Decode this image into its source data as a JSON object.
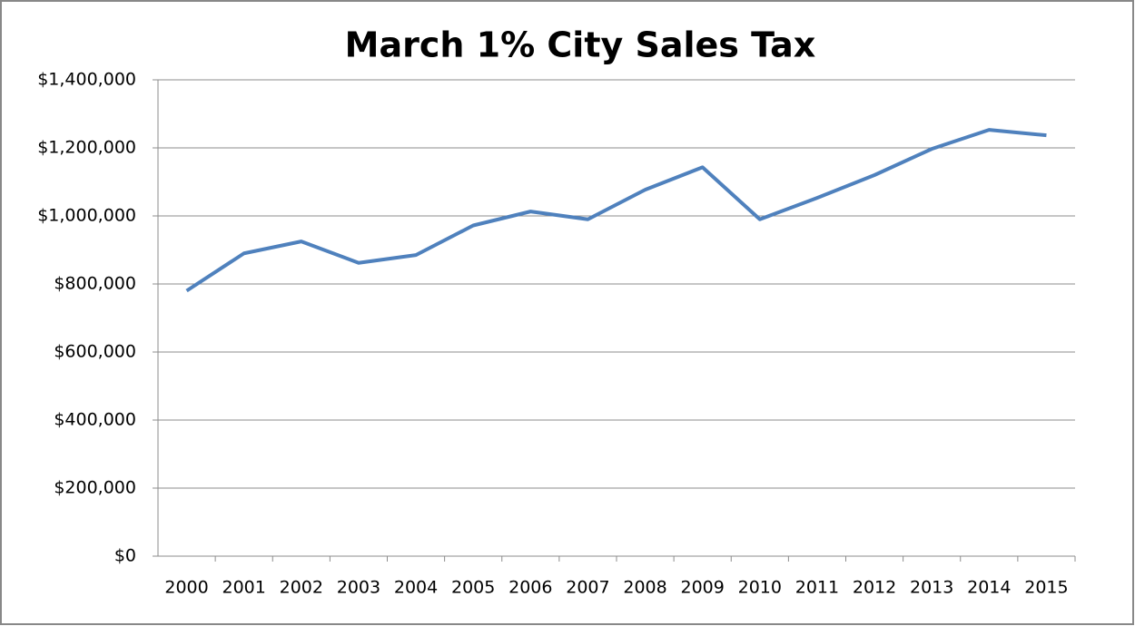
{
  "chart_data": {
    "type": "line",
    "title": "March 1% City Sales Tax",
    "categories": [
      "2000",
      "2001",
      "2002",
      "2003",
      "2004",
      "2005",
      "2006",
      "2007",
      "2008",
      "2009",
      "2010",
      "2011",
      "2012",
      "2013",
      "2014",
      "2015"
    ],
    "series": [
      {
        "color": "#4f81bd",
        "values": [
          780000,
          890000,
          925000,
          862000,
          885000,
          972000,
          1013000,
          990000,
          1077000,
          1143000,
          990000,
          1053000,
          1120000,
          1197000,
          1253000,
          1237000
        ]
      }
    ],
    "ylim": [
      0,
      1400000
    ],
    "yticks": [
      {
        "value": 0,
        "label": "$0"
      },
      {
        "value": 200000,
        "label": "$200,000"
      },
      {
        "value": 400000,
        "label": "$400,000"
      },
      {
        "value": 600000,
        "label": "$600,000"
      },
      {
        "value": 800000,
        "label": "$800,000"
      },
      {
        "value": 1000000,
        "label": "$1,000,000"
      },
      {
        "value": 1200000,
        "label": "$1,200,000"
      },
      {
        "value": 1400000,
        "label": "$1,400,000"
      }
    ],
    "grid": true
  }
}
